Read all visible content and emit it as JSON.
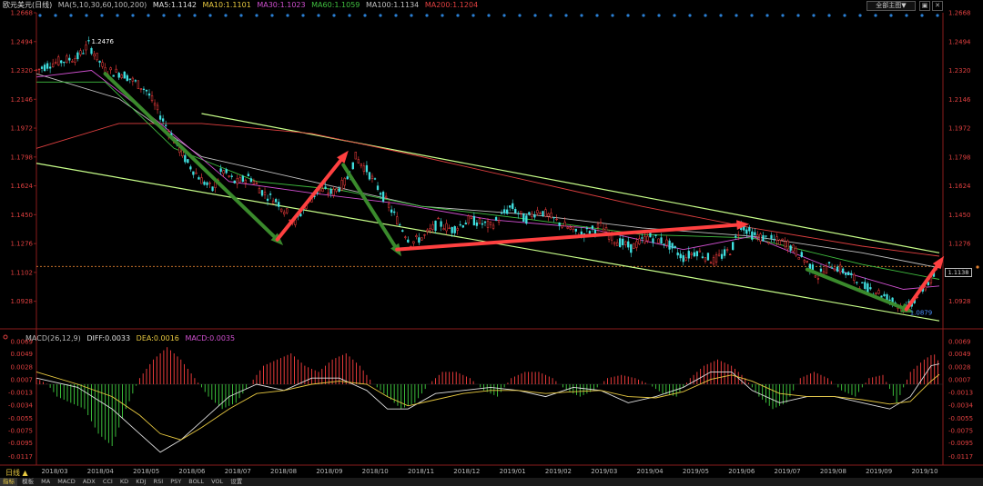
{
  "title_bar": {
    "symbol": "欧元美元(日线)",
    "ma_label": "MA(5,10,30,60,100,200)",
    "ma5": "MA5:1.1142",
    "ma10": "MA10:1.1101",
    "ma30": "MA30:1.1023",
    "ma60": "MA60:1.1059",
    "ma100": "MA100:1.1134",
    "ma200": "MA200:1.1204",
    "selector": "全部主图▼",
    "colors": {
      "ma5": "#e0e0e0",
      "ma10": "#e8c940",
      "ma30": "#d050d0",
      "ma60": "#40c040",
      "ma100": "#c0c0c0",
      "ma200": "#e04040"
    }
  },
  "price_axis": {
    "ticks": [
      1.2668,
      1.2494,
      1.232,
      1.2146,
      1.1972,
      1.1798,
      1.1624,
      1.145,
      1.1276,
      1.1102,
      1.0928
    ],
    "labels": [
      "1.2668",
      "1.2494",
      "1.2320",
      "1.2146",
      "1.1972",
      "1.1798",
      "1.1624",
      "1.1450",
      "1.1276",
      "1.1102",
      "1.0928"
    ]
  },
  "macd_axis": {
    "ticks": [
      0.0069,
      0.0049,
      0.0028,
      0.0007,
      -0.0013,
      -0.0034,
      -0.0055,
      -0.0075,
      -0.0095,
      -0.0117
    ],
    "labels": [
      "0.0069",
      "0.0049",
      "0.0028",
      "0.0007",
      "-0.0013",
      "-0.0034",
      "-0.0055",
      "-0.0075",
      "-0.0095",
      "-0.0117"
    ]
  },
  "macd_title": {
    "name": "MACD(26,12,9)",
    "diff": "DIFF:0.0033",
    "dea": "DEA:0.0016",
    "macd": "MACD:0.0035"
  },
  "annotations": {
    "high_label": "1.2476",
    "low_label": "1.0879",
    "current_price": "1.1138"
  },
  "period_label": "日线 ▲",
  "bottom_tabs": [
    "指标",
    "模板",
    "MA",
    "MACD",
    "ADX",
    "CCI",
    "KD",
    "KDJ",
    "RSI",
    "PSY",
    "BOLL",
    "VOL",
    "设置"
  ],
  "chart_data": {
    "type": "candlestick",
    "x_labels": [
      "2018/03",
      "2018/04",
      "2018/05",
      "2018/06",
      "2018/07",
      "2018/08",
      "2018/09",
      "2018/10",
      "2018/11",
      "2018/12",
      "2019/01",
      "2019/02",
      "2019/03",
      "2019/04",
      "2019/05",
      "2019/06",
      "2019/07",
      "2019/08",
      "2019/09",
      "2019/10"
    ],
    "ylim": [
      1.08,
      1.2668
    ],
    "price_path": [
      [
        0,
        1.232
      ],
      [
        10,
        1.236
      ],
      [
        20,
        1.238
      ],
      [
        30,
        1.24
      ],
      [
        38,
        1.2476
      ],
      [
        50,
        1.232
      ],
      [
        63,
        1.23
      ],
      [
        80,
        1.22
      ],
      [
        90,
        1.205
      ],
      [
        100,
        1.19
      ],
      [
        110,
        1.176
      ],
      [
        120,
        1.166
      ],
      [
        128,
        1.16
      ],
      [
        135,
        1.172
      ],
      [
        145,
        1.164
      ],
      [
        155,
        1.168
      ],
      [
        165,
        1.158
      ],
      [
        175,
        1.153
      ],
      [
        188,
        1.14
      ],
      [
        195,
        1.15
      ],
      [
        205,
        1.16
      ],
      [
        215,
        1.158
      ],
      [
        225,
        1.165
      ],
      [
        232,
        1.1798
      ],
      [
        240,
        1.172
      ],
      [
        252,
        1.156
      ],
      [
        262,
        1.142
      ],
      [
        272,
        1.128
      ],
      [
        282,
        1.132
      ],
      [
        292,
        1.14
      ],
      [
        302,
        1.136
      ],
      [
        315,
        1.142
      ],
      [
        330,
        1.138
      ],
      [
        345,
        1.15
      ],
      [
        355,
        1.142
      ],
      [
        365,
        1.148
      ],
      [
        380,
        1.14
      ],
      [
        395,
        1.133
      ],
      [
        410,
        1.138
      ],
      [
        420,
        1.13
      ],
      [
        432,
        1.125
      ],
      [
        445,
        1.132
      ],
      [
        458,
        1.128
      ],
      [
        470,
        1.119
      ],
      [
        480,
        1.123
      ],
      [
        492,
        1.117
      ],
      [
        505,
        1.124
      ],
      [
        512,
        1.139
      ],
      [
        520,
        1.133
      ],
      [
        532,
        1.13
      ],
      [
        545,
        1.128
      ],
      [
        558,
        1.118
      ],
      [
        568,
        1.108
      ],
      [
        578,
        1.115
      ],
      [
        590,
        1.109
      ],
      [
        600,
        1.102
      ],
      [
        610,
        1.099
      ],
      [
        620,
        1.094
      ],
      [
        632,
        1.0879
      ],
      [
        640,
        1.096
      ],
      [
        652,
        1.108
      ],
      [
        656,
        1.1138
      ]
    ],
    "ma_series": {
      "ma200": [
        [
          0,
          1.185
        ],
        [
          60,
          1.2
        ],
        [
          120,
          1.2
        ],
        [
          200,
          1.194
        ],
        [
          280,
          1.18
        ],
        [
          360,
          1.165
        ],
        [
          440,
          1.15
        ],
        [
          520,
          1.137
        ],
        [
          600,
          1.126
        ],
        [
          656,
          1.12
        ]
      ],
      "ma100": [
        [
          0,
          1.23
        ],
        [
          60,
          1.215
        ],
        [
          120,
          1.18
        ],
        [
          200,
          1.165
        ],
        [
          280,
          1.15
        ],
        [
          360,
          1.145
        ],
        [
          440,
          1.137
        ],
        [
          520,
          1.132
        ],
        [
          600,
          1.122
        ],
        [
          656,
          1.113
        ]
      ],
      "ma60": [
        [
          0,
          1.225
        ],
        [
          50,
          1.225
        ],
        [
          100,
          1.185
        ],
        [
          160,
          1.165
        ],
        [
          220,
          1.16
        ],
        [
          280,
          1.15
        ],
        [
          360,
          1.142
        ],
        [
          440,
          1.133
        ],
        [
          520,
          1.131
        ],
        [
          600,
          1.115
        ],
        [
          656,
          1.106
        ]
      ],
      "ma30": [
        [
          0,
          1.228
        ],
        [
          40,
          1.232
        ],
        [
          90,
          1.2
        ],
        [
          140,
          1.165
        ],
        [
          200,
          1.158
        ],
        [
          260,
          1.152
        ],
        [
          330,
          1.142
        ],
        [
          400,
          1.137
        ],
        [
          470,
          1.124
        ],
        [
          520,
          1.132
        ],
        [
          580,
          1.112
        ],
        [
          630,
          1.1
        ],
        [
          656,
          1.102
        ]
      ]
    },
    "channel_lines": {
      "upper": [
        [
          120,
          1.206
        ],
        [
          656,
          1.122
        ]
      ],
      "lower": [
        [
          0,
          1.176
        ],
        [
          656,
          1.081
        ]
      ]
    },
    "trend_arrows": [
      {
        "color": "#3a8a2c",
        "from": [
          50,
          1.23
        ],
        "to": [
          175,
          1.13
        ]
      },
      {
        "color": "#ff4040",
        "from": [
          175,
          1.13
        ],
        "to": [
          223,
          1.1798
        ]
      },
      {
        "color": "#3a8a2c",
        "from": [
          223,
          1.175
        ],
        "to": [
          262,
          1.124
        ]
      },
      {
        "color": "#ff4040",
        "from": [
          262,
          1.124
        ],
        "to": [
          512,
          1.139
        ]
      },
      {
        "color": "#3a8a2c",
        "from": [
          560,
          1.112
        ],
        "to": [
          632,
          1.0879
        ]
      },
      {
        "color": "#ff4040",
        "from": [
          632,
          1.0879
        ],
        "to": [
          656,
          1.116
        ]
      }
    ],
    "macd": {
      "ylim": [
        -0.0125,
        0.0075
      ],
      "hist": [
        [
          0,
          0.001
        ],
        [
          8,
          0.0
        ],
        [
          15,
          -0.002
        ],
        [
          25,
          -0.003
        ],
        [
          35,
          -0.004
        ],
        [
          45,
          -0.008
        ],
        [
          55,
          -0.01
        ],
        [
          65,
          -0.004
        ],
        [
          75,
          0.001
        ],
        [
          85,
          0.004
        ],
        [
          95,
          0.006
        ],
        [
          105,
          0.004
        ],
        [
          115,
          0.001
        ],
        [
          125,
          -0.002
        ],
        [
          135,
          -0.004
        ],
        [
          145,
          -0.003
        ],
        [
          155,
          0.0
        ],
        [
          165,
          0.003
        ],
        [
          175,
          0.004
        ],
        [
          185,
          0.005
        ],
        [
          195,
          0.003
        ],
        [
          205,
          0.002
        ],
        [
          215,
          0.004
        ],
        [
          225,
          0.005
        ],
        [
          235,
          0.003
        ],
        [
          245,
          0.0
        ],
        [
          255,
          -0.002
        ],
        [
          265,
          -0.004
        ],
        [
          275,
          -0.003
        ],
        [
          285,
          0.0
        ],
        [
          295,
          0.002
        ],
        [
          305,
          0.002
        ],
        [
          315,
          0.001
        ],
        [
          325,
          -0.001
        ],
        [
          335,
          -0.002
        ],
        [
          345,
          0.001
        ],
        [
          355,
          0.002
        ],
        [
          365,
          0.002
        ],
        [
          375,
          0.001
        ],
        [
          385,
          -0.001
        ],
        [
          395,
          -0.002
        ],
        [
          405,
          -0.001
        ],
        [
          415,
          0.001
        ],
        [
          425,
          0.0015
        ],
        [
          435,
          0.001
        ],
        [
          445,
          0.0
        ],
        [
          455,
          -0.0015
        ],
        [
          465,
          -0.002
        ],
        [
          475,
          0.001
        ],
        [
          485,
          0.003
        ],
        [
          495,
          0.004
        ],
        [
          505,
          0.003
        ],
        [
          515,
          0.001
        ],
        [
          525,
          -0.002
        ],
        [
          535,
          -0.004
        ],
        [
          545,
          -0.003
        ],
        [
          555,
          0.001
        ],
        [
          565,
          0.002
        ],
        [
          575,
          0.001
        ],
        [
          585,
          -0.001
        ],
        [
          595,
          -0.002
        ],
        [
          605,
          0.001
        ],
        [
          615,
          0.0015
        ],
        [
          625,
          -0.003
        ],
        [
          635,
          0.002
        ],
        [
          645,
          0.004
        ],
        [
          652,
          0.005
        ],
        [
          656,
          0.0035
        ]
      ],
      "diff": [
        [
          0,
          0.001
        ],
        [
          30,
          -0.0005
        ],
        [
          55,
          -0.004
        ],
        [
          75,
          -0.008
        ],
        [
          90,
          -0.011
        ],
        [
          105,
          -0.009
        ],
        [
          120,
          -0.006
        ],
        [
          140,
          -0.002
        ],
        [
          160,
          0.0
        ],
        [
          180,
          -0.001
        ],
        [
          200,
          0.001
        ],
        [
          220,
          0.001
        ],
        [
          240,
          -0.001
        ],
        [
          255,
          -0.004
        ],
        [
          270,
          -0.004
        ],
        [
          290,
          -0.0015
        ],
        [
          310,
          -0.001
        ],
        [
          330,
          -0.0005
        ],
        [
          350,
          -0.001
        ],
        [
          370,
          -0.002
        ],
        [
          390,
          -0.0005
        ],
        [
          410,
          -0.001
        ],
        [
          430,
          -0.003
        ],
        [
          450,
          -0.002
        ],
        [
          470,
          -0.0005
        ],
        [
          490,
          0.002
        ],
        [
          505,
          0.002
        ],
        [
          520,
          -0.001
        ],
        [
          540,
          -0.003
        ],
        [
          560,
          -0.002
        ],
        [
          580,
          -0.002
        ],
        [
          600,
          -0.003
        ],
        [
          620,
          -0.004
        ],
        [
          635,
          -0.002
        ],
        [
          650,
          0.003
        ],
        [
          656,
          0.0033
        ]
      ],
      "dea": [
        [
          0,
          0.002
        ],
        [
          30,
          0.0
        ],
        [
          55,
          -0.002
        ],
        [
          75,
          -0.005
        ],
        [
          90,
          -0.008
        ],
        [
          105,
          -0.009
        ],
        [
          120,
          -0.007
        ],
        [
          140,
          -0.004
        ],
        [
          160,
          -0.0015
        ],
        [
          180,
          -0.001
        ],
        [
          200,
          0.0
        ],
        [
          220,
          0.0005
        ],
        [
          240,
          0.0
        ],
        [
          255,
          -0.002
        ],
        [
          270,
          -0.0035
        ],
        [
          290,
          -0.0025
        ],
        [
          310,
          -0.0015
        ],
        [
          330,
          -0.001
        ],
        [
          350,
          -0.001
        ],
        [
          370,
          -0.0015
        ],
        [
          390,
          -0.0012
        ],
        [
          410,
          -0.001
        ],
        [
          430,
          -0.002
        ],
        [
          450,
          -0.0022
        ],
        [
          470,
          -0.0012
        ],
        [
          490,
          0.0008
        ],
        [
          505,
          0.0015
        ],
        [
          520,
          0.0005
        ],
        [
          540,
          -0.0015
        ],
        [
          560,
          -0.002
        ],
        [
          580,
          -0.002
        ],
        [
          600,
          -0.0025
        ],
        [
          620,
          -0.0032
        ],
        [
          635,
          -0.0028
        ],
        [
          650,
          0.0005
        ],
        [
          656,
          0.0016
        ]
      ]
    }
  }
}
